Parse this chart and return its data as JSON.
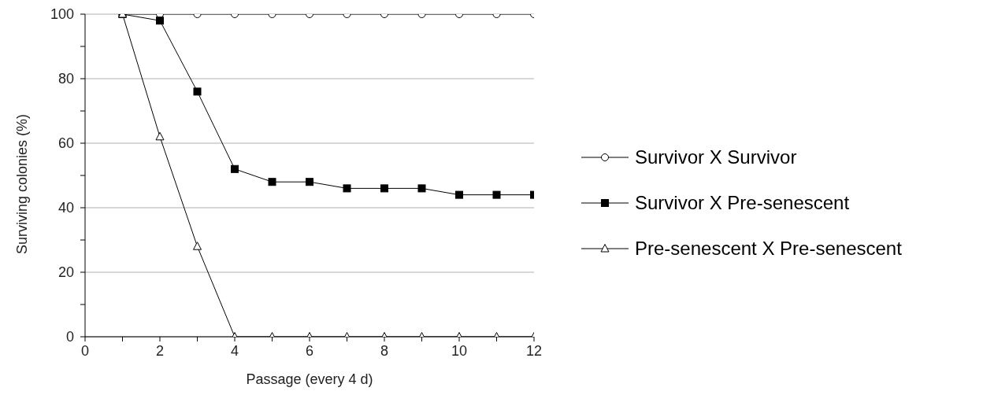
{
  "chart_data": {
    "type": "line",
    "xlabel": "Passage (every 4 d)",
    "ylabel": "Surviving colonies (%)",
    "x": [
      1,
      2,
      3,
      4,
      5,
      6,
      7,
      8,
      9,
      10,
      11,
      12
    ],
    "series": [
      {
        "name": "Survivor X Survivor",
        "color": "#000000",
        "marker": "circle",
        "values": [
          100,
          100,
          100,
          100,
          100,
          100,
          100,
          100,
          100,
          100,
          100,
          100
        ]
      },
      {
        "name": "Survivor X Pre-senescent",
        "color": "#000000",
        "marker": "square",
        "values": [
          100,
          98,
          76,
          52,
          48,
          48,
          46,
          46,
          46,
          44,
          44,
          44
        ]
      },
      {
        "name": "Pre-senescent X Pre-senescent",
        "color": "#000000",
        "marker": "triangle",
        "values": [
          100,
          62,
          28,
          0,
          0,
          0,
          0,
          0,
          0,
          0,
          0,
          0
        ]
      }
    ],
    "xlim": [
      0,
      12
    ],
    "xticks": [
      0,
      {
        "value": 1,
        "label": null
      },
      2,
      {
        "value": 3,
        "label": null
      },
      4,
      {
        "value": 5,
        "label": null
      },
      6,
      {
        "value": 7,
        "label": null
      },
      8,
      {
        "value": 9,
        "label": null
      },
      10,
      {
        "value": 11,
        "label": null
      },
      12
    ],
    "ylim": [
      0,
      100
    ],
    "yticks": [
      0,
      {
        "value": 10,
        "label": null
      },
      20,
      {
        "value": 30,
        "label": null
      },
      40,
      {
        "value": 50,
        "label": null
      },
      60,
      {
        "value": 70,
        "label": null
      },
      80,
      {
        "value": 90,
        "label": null
      },
      100
    ],
    "grid": "y",
    "legend": "right",
    "line_style": "solid"
  }
}
